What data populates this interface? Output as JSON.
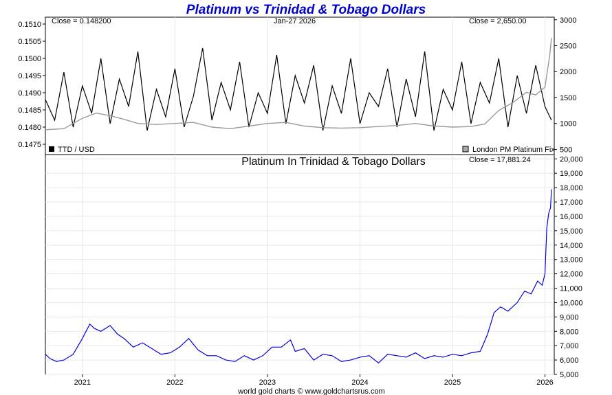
{
  "chart_data": [
    {
      "type": "line",
      "title": "Platinum vs Trinidad & Tobago Dollars",
      "date_label": "Jan-27  2026",
      "left_close": "Close = 0.148200",
      "right_close": "Close = 2,650.00",
      "left_legend": "TTD / USD",
      "right_legend": "London PM Platinum Fix",
      "left_axis": {
        "ylim": [
          0.1472,
          0.1512
        ],
        "ticks": [
          "0.1475",
          "0.1480",
          "0.1485",
          "0.1490",
          "0.1495",
          "0.1500",
          "0.1505",
          "0.1510"
        ]
      },
      "right_axis": {
        "ylim": [
          400,
          3050
        ],
        "ticks": [
          "500",
          "1000",
          "1500",
          "2000",
          "2500",
          "3000"
        ]
      },
      "xlim": [
        2020.6,
        2026.1
      ],
      "series": [
        {
          "name": "TTD / USD",
          "color": "#000000",
          "x": [
            2020.6,
            2020.7,
            2020.8,
            2020.9,
            2021.0,
            2021.1,
            2021.2,
            2021.3,
            2021.4,
            2021.5,
            2021.6,
            2021.7,
            2021.8,
            2021.9,
            2022.0,
            2022.1,
            2022.2,
            2022.3,
            2022.4,
            2022.5,
            2022.6,
            2022.7,
            2022.8,
            2022.9,
            2023.0,
            2023.1,
            2023.2,
            2023.3,
            2023.4,
            2023.5,
            2023.6,
            2023.7,
            2023.8,
            2023.9,
            2024.0,
            2024.1,
            2024.2,
            2024.3,
            2024.4,
            2024.5,
            2024.6,
            2024.7,
            2024.8,
            2024.9,
            2025.0,
            2025.1,
            2025.2,
            2025.3,
            2025.4,
            2025.5,
            2025.6,
            2025.7,
            2025.8,
            2025.9,
            2026.0,
            2026.07
          ],
          "y": [
            0.1488,
            0.1482,
            0.1496,
            0.148,
            0.1492,
            0.1484,
            0.15,
            0.1481,
            0.1494,
            0.1486,
            0.1502,
            0.1479,
            0.1491,
            0.1483,
            0.1497,
            0.148,
            0.1489,
            0.1503,
            0.1482,
            0.1493,
            0.1485,
            0.1499,
            0.148,
            0.149,
            0.1484,
            0.1501,
            0.1481,
            0.1495,
            0.1487,
            0.1498,
            0.1479,
            0.1492,
            0.1484,
            0.15,
            0.1481,
            0.149,
            0.1486,
            0.1497,
            0.148,
            0.1494,
            0.1483,
            0.1502,
            0.1479,
            0.1491,
            0.1485,
            0.1499,
            0.1481,
            0.1493,
            0.1487,
            0.15,
            0.148,
            0.1495,
            0.1484,
            0.1498,
            0.1486,
            0.1482
          ]
        },
        {
          "name": "London PM Platinum Fix",
          "color": "#999999",
          "x": [
            2020.6,
            2020.8,
            2021.0,
            2021.15,
            2021.3,
            2021.45,
            2021.6,
            2021.8,
            2022.0,
            2022.2,
            2022.4,
            2022.6,
            2022.8,
            2023.0,
            2023.2,
            2023.4,
            2023.6,
            2023.8,
            2024.0,
            2024.2,
            2024.4,
            2024.6,
            2024.8,
            2025.0,
            2025.2,
            2025.35,
            2025.5,
            2025.65,
            2025.8,
            2025.9,
            2026.0,
            2026.05,
            2026.07
          ],
          "y": [
            880,
            900,
            1100,
            1200,
            1150,
            1080,
            1000,
            980,
            1000,
            1020,
            930,
            900,
            950,
            1000,
            1020,
            950,
            920,
            910,
            920,
            940,
            960,
            1000,
            950,
            930,
            940,
            990,
            1250,
            1400,
            1600,
            1550,
            1700,
            2300,
            2650
          ]
        }
      ]
    },
    {
      "type": "line",
      "title": "Platinum In Trinidad & Tobago Dollars",
      "close_label": "Close = 17,881.24",
      "xlim": [
        2020.6,
        2026.1
      ],
      "ylim": [
        5000,
        20300
      ],
      "y_ticks": [
        "5,000",
        "6,000",
        "7,000",
        "8,000",
        "9,000",
        "10,000",
        "11,000",
        "12,000",
        "13,000",
        "14,000",
        "15,000",
        "16,000",
        "17,000",
        "18,000",
        "19,000",
        "20,000"
      ],
      "x_ticks": [
        "2021",
        "2022",
        "2023",
        "2024",
        "2025",
        "2026"
      ],
      "series": [
        {
          "name": "",
          "color": "#0000dd",
          "x": [
            2020.6,
            2020.65,
            2020.72,
            2020.8,
            2020.9,
            2021.0,
            2021.08,
            2021.13,
            2021.2,
            2021.3,
            2021.38,
            2021.45,
            2021.55,
            2021.65,
            2021.75,
            2021.85,
            2021.95,
            2022.05,
            2022.15,
            2022.25,
            2022.35,
            2022.45,
            2022.55,
            2022.65,
            2022.75,
            2022.85,
            2022.95,
            2023.05,
            2023.15,
            2023.25,
            2023.3,
            2023.4,
            2023.5,
            2023.6,
            2023.7,
            2023.8,
            2023.9,
            2024.0,
            2024.1,
            2024.2,
            2024.3,
            2024.4,
            2024.5,
            2024.6,
            2024.7,
            2024.8,
            2024.9,
            2025.0,
            2025.1,
            2025.2,
            2025.3,
            2025.38,
            2025.45,
            2025.52,
            2025.6,
            2025.7,
            2025.78,
            2025.85,
            2025.92,
            2025.97,
            2026.0,
            2026.02,
            2026.04,
            2026.06,
            2026.07
          ],
          "y": [
            6400,
            6100,
            5900,
            6000,
            6400,
            7500,
            8500,
            8200,
            8000,
            8400,
            7800,
            7500,
            6900,
            7200,
            6800,
            6400,
            6500,
            6900,
            7500,
            6700,
            6300,
            6300,
            6000,
            5900,
            6300,
            6000,
            6300,
            6900,
            6900,
            7400,
            6600,
            6800,
            6000,
            6400,
            6300,
            5900,
            6000,
            6200,
            6300,
            5800,
            6400,
            6300,
            6200,
            6500,
            6100,
            6300,
            6200,
            6400,
            6300,
            6500,
            6600,
            7800,
            9300,
            9700,
            9400,
            10000,
            10800,
            10600,
            11500,
            11200,
            12000,
            15200,
            16200,
            16600,
            17881
          ]
        }
      ]
    }
  ],
  "footer": "world gold charts © www.goldchartsrus.com"
}
